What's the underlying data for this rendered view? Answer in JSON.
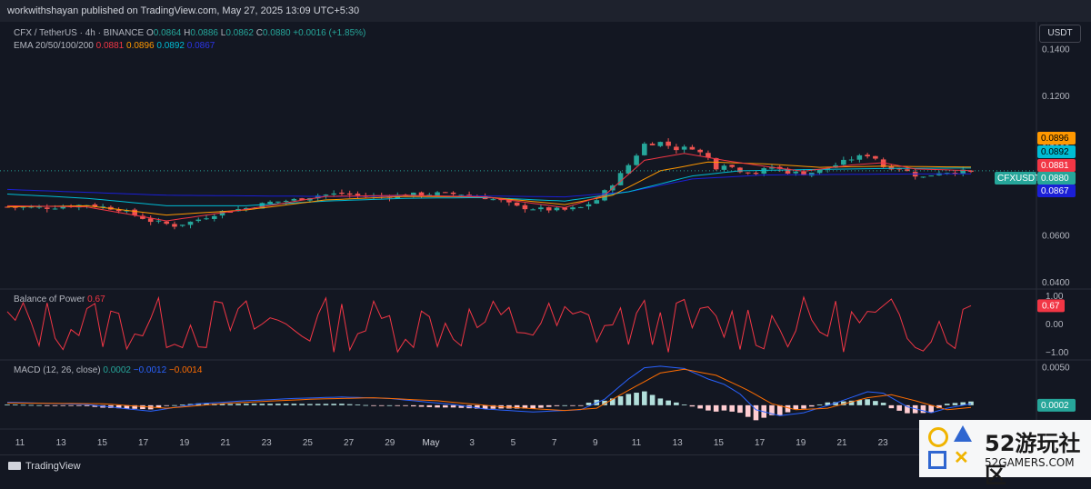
{
  "header": {
    "publish_text": "workwithshayan published on TradingView.com, May 27, 2025 13:09 UTC+5:30"
  },
  "legend": {
    "symbol": "CFX / TetherUS · 4h · BINANCE",
    "o_label": "O",
    "o": "0.0864",
    "h_label": "H",
    "h": "0.0886",
    "l_label": "L",
    "l": "0.0862",
    "c_label": "C",
    "c": "0.0880",
    "change": "+0.0016 (+1.85%)",
    "ema_label": "EMA 20/50/100/200",
    "ema20": "0.0881",
    "ema50": "0.0896",
    "ema100": "0.0892",
    "ema200": "0.0867"
  },
  "currency_button": "USDT",
  "bop_label": "Balance of Power",
  "bop_value": "0.67",
  "macd_label": "MACD (12, 26, close)",
  "macd_v1": "0.0002",
  "macd_v2": "−0.0012",
  "macd_v3": "−0.0014",
  "footer": {
    "brand": "TradingView"
  },
  "watermark": {
    "logo_number": "52",
    "name": "游玩社区",
    "site": "52GAMERS.COM"
  },
  "colors": {
    "background": "#131722",
    "up": "#26a69a",
    "down": "#ef5350",
    "ema20": "#f23645",
    "ema50": "#ff9800",
    "ema100": "#00bcd4",
    "ema200": "#1b1fd6",
    "bop": "#f23645",
    "macd": "#2962ff",
    "signal": "#ff6d00"
  },
  "chart_data": [
    {
      "type": "candlestick",
      "title": "CFX / TetherUS · 4h · BINANCE",
      "x_ticks": [
        "11",
        "13",
        "15",
        "17",
        "19",
        "21",
        "23",
        "25",
        "27",
        "29",
        "May",
        "3",
        "5",
        "7",
        "9",
        "11",
        "13",
        "15",
        "17",
        "19",
        "21",
        "23"
      ],
      "y_ticks": [
        "0.1400",
        "0.1200",
        "0.1000",
        "0.0800",
        "0.0600",
        "0.0400"
      ],
      "ylim": [
        0.038,
        0.152
      ],
      "last_price": {
        "label": "CFXUSDT",
        "value": "0.0880"
      },
      "price_tags": [
        {
          "value": "0.0896",
          "series": "EMA 50"
        },
        {
          "value": "0.0892",
          "series": "EMA 100"
        },
        {
          "value": "0.0881",
          "series": "EMA 20"
        },
        {
          "value": "0.0867",
          "series": "EMA 200"
        }
      ],
      "close_path": [
        [
          0,
          0.0725
        ],
        [
          5,
          0.0722
        ],
        [
          10,
          0.0735
        ],
        [
          14,
          0.0715
        ],
        [
          18,
          0.0665
        ],
        [
          21,
          0.0645
        ],
        [
          23,
          0.066
        ],
        [
          27,
          0.0705
        ],
        [
          30,
          0.072
        ],
        [
          33,
          0.0745
        ],
        [
          36,
          0.0755
        ],
        [
          39,
          0.0775
        ],
        [
          42,
          0.0782
        ],
        [
          45,
          0.077
        ],
        [
          48,
          0.0772
        ],
        [
          51,
          0.0778
        ],
        [
          54,
          0.0782
        ],
        [
          57,
          0.078
        ],
        [
          60,
          0.0765
        ],
        [
          62,
          0.075
        ],
        [
          64,
          0.0725
        ],
        [
          67,
          0.0715
        ],
        [
          70,
          0.0712
        ],
        [
          72,
          0.0722
        ],
        [
          74,
          0.0755
        ],
        [
          76,
          0.0825
        ],
        [
          78,
          0.0905
        ],
        [
          80,
          0.0995
        ],
        [
          82,
          0.1002
        ],
        [
          84,
          0.0975
        ],
        [
          86,
          0.098
        ],
        [
          88,
          0.0935
        ],
        [
          89,
          0.0895
        ],
        [
          90,
          0.091
        ],
        [
          92,
          0.0882
        ],
        [
          94,
          0.087
        ],
        [
          96,
          0.0898
        ],
        [
          98,
          0.0875
        ],
        [
          100,
          0.0868
        ],
        [
          102,
          0.088
        ],
        [
          104,
          0.0905
        ],
        [
          106,
          0.0932
        ],
        [
          108,
          0.0948
        ],
        [
          109,
          0.0935
        ],
        [
          110,
          0.0898
        ],
        [
          112,
          0.0892
        ],
        [
          114,
          0.0862
        ],
        [
          115,
          0.0852
        ],
        [
          117,
          0.0875
        ],
        [
          120,
          0.0877
        ],
        [
          121,
          0.0872
        ]
      ],
      "ema20": [
        [
          0,
          0.073
        ],
        [
          10,
          0.0725
        ],
        [
          20,
          0.0665
        ],
        [
          30,
          0.0715
        ],
        [
          40,
          0.077
        ],
        [
          50,
          0.0775
        ],
        [
          60,
          0.0768
        ],
        [
          70,
          0.0722
        ],
        [
          75,
          0.0775
        ],
        [
          80,
          0.0925
        ],
        [
          85,
          0.0955
        ],
        [
          90,
          0.0925
        ],
        [
          96,
          0.0895
        ],
        [
          100,
          0.0878
        ],
        [
          106,
          0.0905
        ],
        [
          110,
          0.0915
        ],
        [
          114,
          0.0888
        ],
        [
          121,
          0.0881
        ]
      ],
      "ema50": [
        [
          0,
          0.0725
        ],
        [
          10,
          0.073
        ],
        [
          20,
          0.069
        ],
        [
          30,
          0.0712
        ],
        [
          40,
          0.0755
        ],
        [
          50,
          0.077
        ],
        [
          60,
          0.0768
        ],
        [
          70,
          0.0735
        ],
        [
          76,
          0.0775
        ],
        [
          82,
          0.088
        ],
        [
          88,
          0.0918
        ],
        [
          95,
          0.091
        ],
        [
          102,
          0.0895
        ],
        [
          110,
          0.09
        ],
        [
          121,
          0.0896
        ]
      ],
      "ema100": [
        [
          0,
          0.078
        ],
        [
          10,
          0.0762
        ],
        [
          20,
          0.073
        ],
        [
          30,
          0.073
        ],
        [
          40,
          0.075
        ],
        [
          50,
          0.0762
        ],
        [
          60,
          0.0765
        ],
        [
          70,
          0.075
        ],
        [
          78,
          0.079
        ],
        [
          86,
          0.0858
        ],
        [
          92,
          0.088
        ],
        [
          100,
          0.0885
        ],
        [
          110,
          0.089
        ],
        [
          121,
          0.0892
        ]
      ],
      "ema200": [
        [
          0,
          0.08
        ],
        [
          20,
          0.0775
        ],
        [
          40,
          0.077
        ],
        [
          60,
          0.0772
        ],
        [
          70,
          0.0768
        ],
        [
          78,
          0.079
        ],
        [
          86,
          0.0845
        ],
        [
          95,
          0.0862
        ],
        [
          110,
          0.0866
        ],
        [
          121,
          0.0867
        ]
      ]
    },
    {
      "type": "line",
      "title": "Balance of Power",
      "y_ticks": [
        "1.00",
        "0.00",
        "−1.00"
      ],
      "ylim": [
        -1.2,
        1.2
      ],
      "last_value": "0.67"
    },
    {
      "type": "bar",
      "title": "MACD (12, 26, close)",
      "y_ticks": [
        "0.0050"
      ],
      "ylim": [
        -0.0022,
        0.0058
      ],
      "last_value": "0.0002",
      "macd": [
        [
          0,
          0.0004
        ],
        [
          10,
          0.0001
        ],
        [
          18,
          -0.0008
        ],
        [
          24,
          0.0002
        ],
        [
          30,
          0.0006
        ],
        [
          36,
          0.0009
        ],
        [
          42,
          0.0011
        ],
        [
          48,
          0.0009
        ],
        [
          56,
          0.0001
        ],
        [
          60,
          -0.0005
        ],
        [
          66,
          -0.0009
        ],
        [
          72,
          -0.0006
        ],
        [
          75,
          0.0008
        ],
        [
          78,
          0.0035
        ],
        [
          80,
          0.005
        ],
        [
          82,
          0.0052
        ],
        [
          85,
          0.0049
        ],
        [
          88,
          0.0035
        ],
        [
          90,
          0.0028
        ],
        [
          92,
          0.0015
        ],
        [
          94,
          -0.0006
        ],
        [
          97,
          -0.0014
        ],
        [
          100,
          -0.001
        ],
        [
          104,
          0.0003
        ],
        [
          108,
          0.0018
        ],
        [
          110,
          0.0016
        ],
        [
          113,
          -0.0002
        ],
        [
          116,
          -0.001
        ],
        [
          118,
          -0.0004
        ],
        [
          121,
          0.0002
        ]
      ],
      "signal": [
        [
          0,
          0.0003
        ],
        [
          12,
          0.0002
        ],
        [
          20,
          -0.0004
        ],
        [
          28,
          0.0003
        ],
        [
          38,
          0.0008
        ],
        [
          46,
          0.001
        ],
        [
          54,
          0.0006
        ],
        [
          62,
          -0.0002
        ],
        [
          70,
          -0.0007
        ],
        [
          74,
          -0.0004
        ],
        [
          78,
          0.002
        ],
        [
          82,
          0.0043
        ],
        [
          85,
          0.0048
        ],
        [
          89,
          0.004
        ],
        [
          93,
          0.002
        ],
        [
          96,
          0.0002
        ],
        [
          99,
          -0.0006
        ],
        [
          103,
          -0.0004
        ],
        [
          108,
          0.001
        ],
        [
          111,
          0.0014
        ],
        [
          114,
          0.0006
        ],
        [
          118,
          -0.0006
        ],
        [
          121,
          -0.0003
        ]
      ]
    }
  ]
}
